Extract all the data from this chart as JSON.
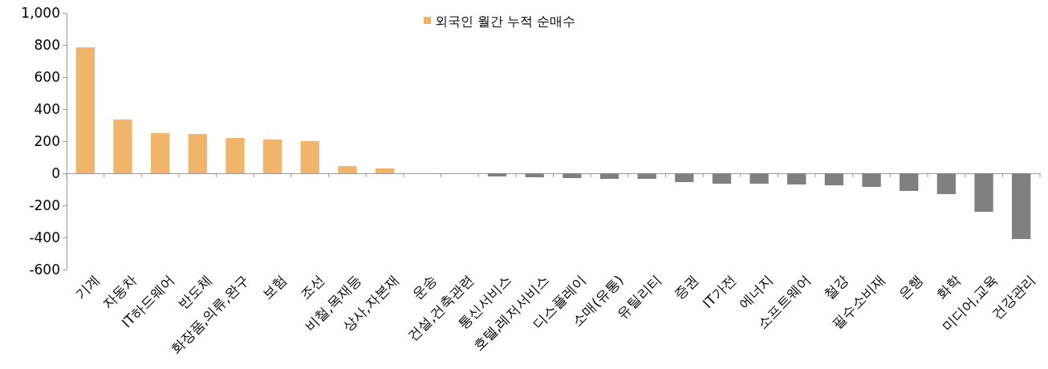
{
  "chart_data": {
    "type": "bar",
    "categories": [
      "기계",
      "자동차",
      "IT하드웨어",
      "반도체",
      "화장품,의류,완구",
      "보험",
      "조선",
      "비철,목재등",
      "상사,자본재",
      "운송",
      "건설,건축관련",
      "통신서비스",
      "호텔,레저서비스",
      "디스플레이",
      "소매(유통)",
      "유틸리티",
      "증권",
      "IT가전",
      "에너지",
      "소프트웨어",
      "철강",
      "필수소비재",
      "은행",
      "화학",
      "미디어,교육",
      "건강관리"
    ],
    "series": [
      {
        "name": "외국인 월간 누적 순매수",
        "color": "#f0b56b",
        "colors": [
          "#f0b56b",
          "#f0b56b",
          "#f0b56b",
          "#f0b56b",
          "#f0b56b",
          "#f0b56b",
          "#f0b56b",
          "#f0b56b",
          "#f0b56b",
          "#f0b56b",
          "#808080",
          "#808080",
          "#808080",
          "#808080",
          "#808080",
          "#808080",
          "#808080",
          "#808080",
          "#808080",
          "#808080",
          "#808080",
          "#808080",
          "#808080",
          "#808080",
          "#808080",
          "#808080"
        ],
        "values": [
          785,
          335,
          250,
          245,
          220,
          210,
          200,
          45,
          30,
          0,
          0,
          -20,
          -25,
          -30,
          -35,
          -35,
          -55,
          -65,
          -65,
          -70,
          -75,
          -85,
          -110,
          -130,
          -240,
          -410
        ]
      }
    ],
    "ylim": [
      -600,
      1000
    ],
    "yticks": [
      -600,
      -400,
      -200,
      0,
      200,
      400,
      600,
      800,
      {
        "value": 1000,
        "label": "1,000"
      }
    ],
    "legend": "top"
  }
}
